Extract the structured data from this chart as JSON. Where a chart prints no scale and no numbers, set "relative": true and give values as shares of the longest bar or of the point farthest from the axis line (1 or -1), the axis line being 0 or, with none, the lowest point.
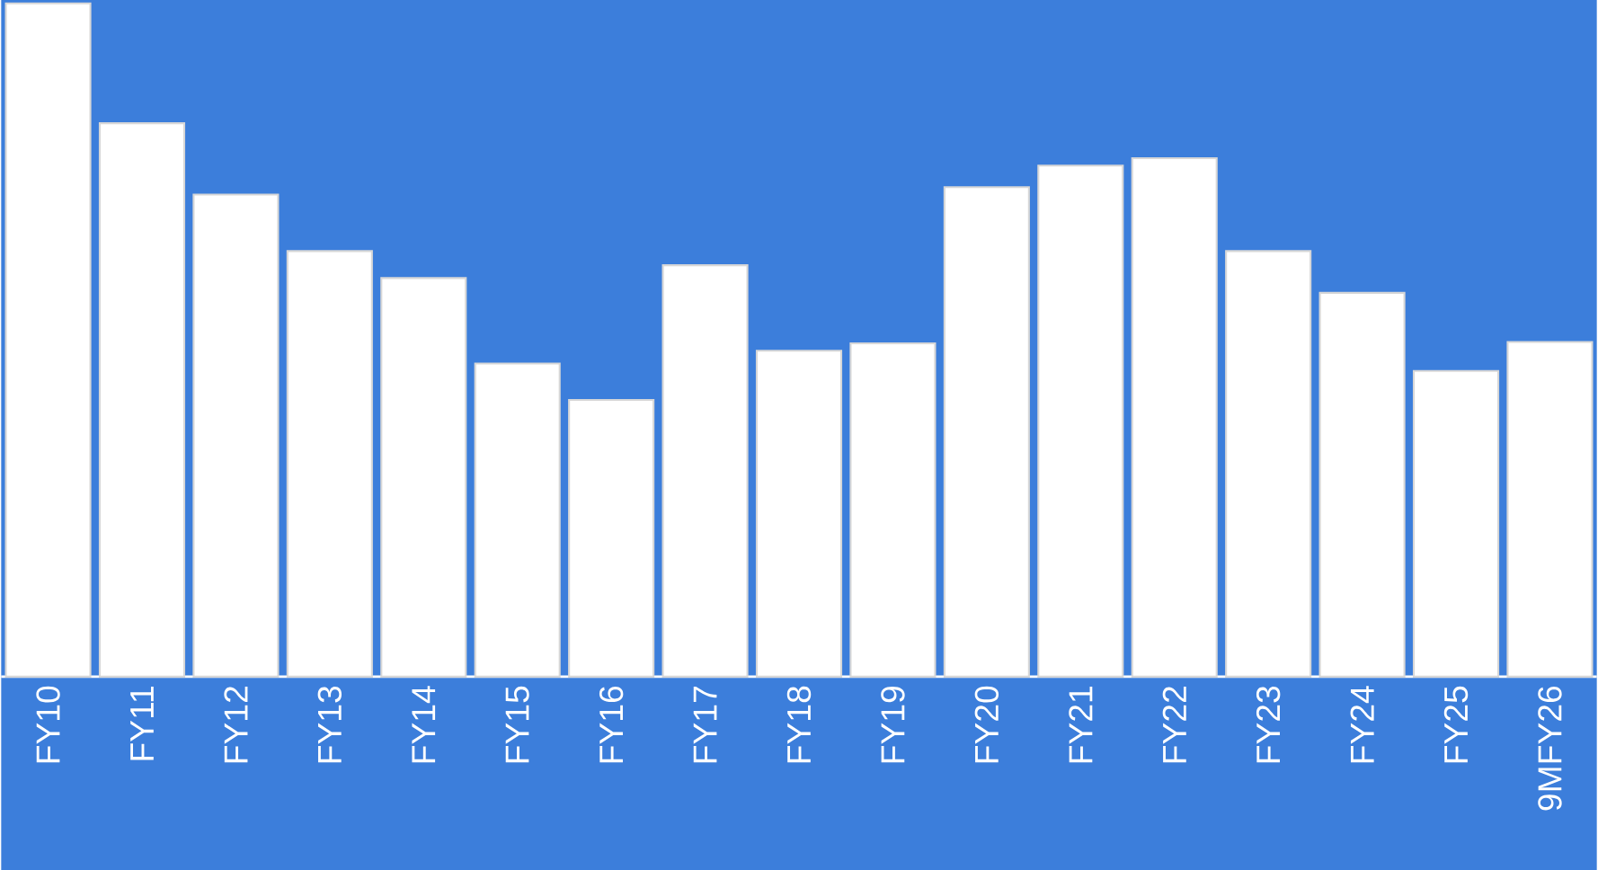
{
  "chart_data": {
    "type": "bar",
    "relative": true,
    "color": "#ffffff",
    "categories": [
      "FY10",
      "FY11",
      "FY12",
      "FY13",
      "FY14",
      "FY15",
      "FY16",
      "FY17",
      "FY18",
      "FY19",
      "FY20",
      "FY21",
      "FY22",
      "FY23",
      "FY24",
      "FY25",
      "9MFY26"
    ],
    "values": [
      1,
      0.822,
      0.716,
      0.632,
      0.592,
      0.465,
      0.411,
      0.611,
      0.484,
      0.495,
      0.727,
      0.759,
      0.77,
      0.632,
      0.57,
      0.454,
      0.497
    ]
  }
}
